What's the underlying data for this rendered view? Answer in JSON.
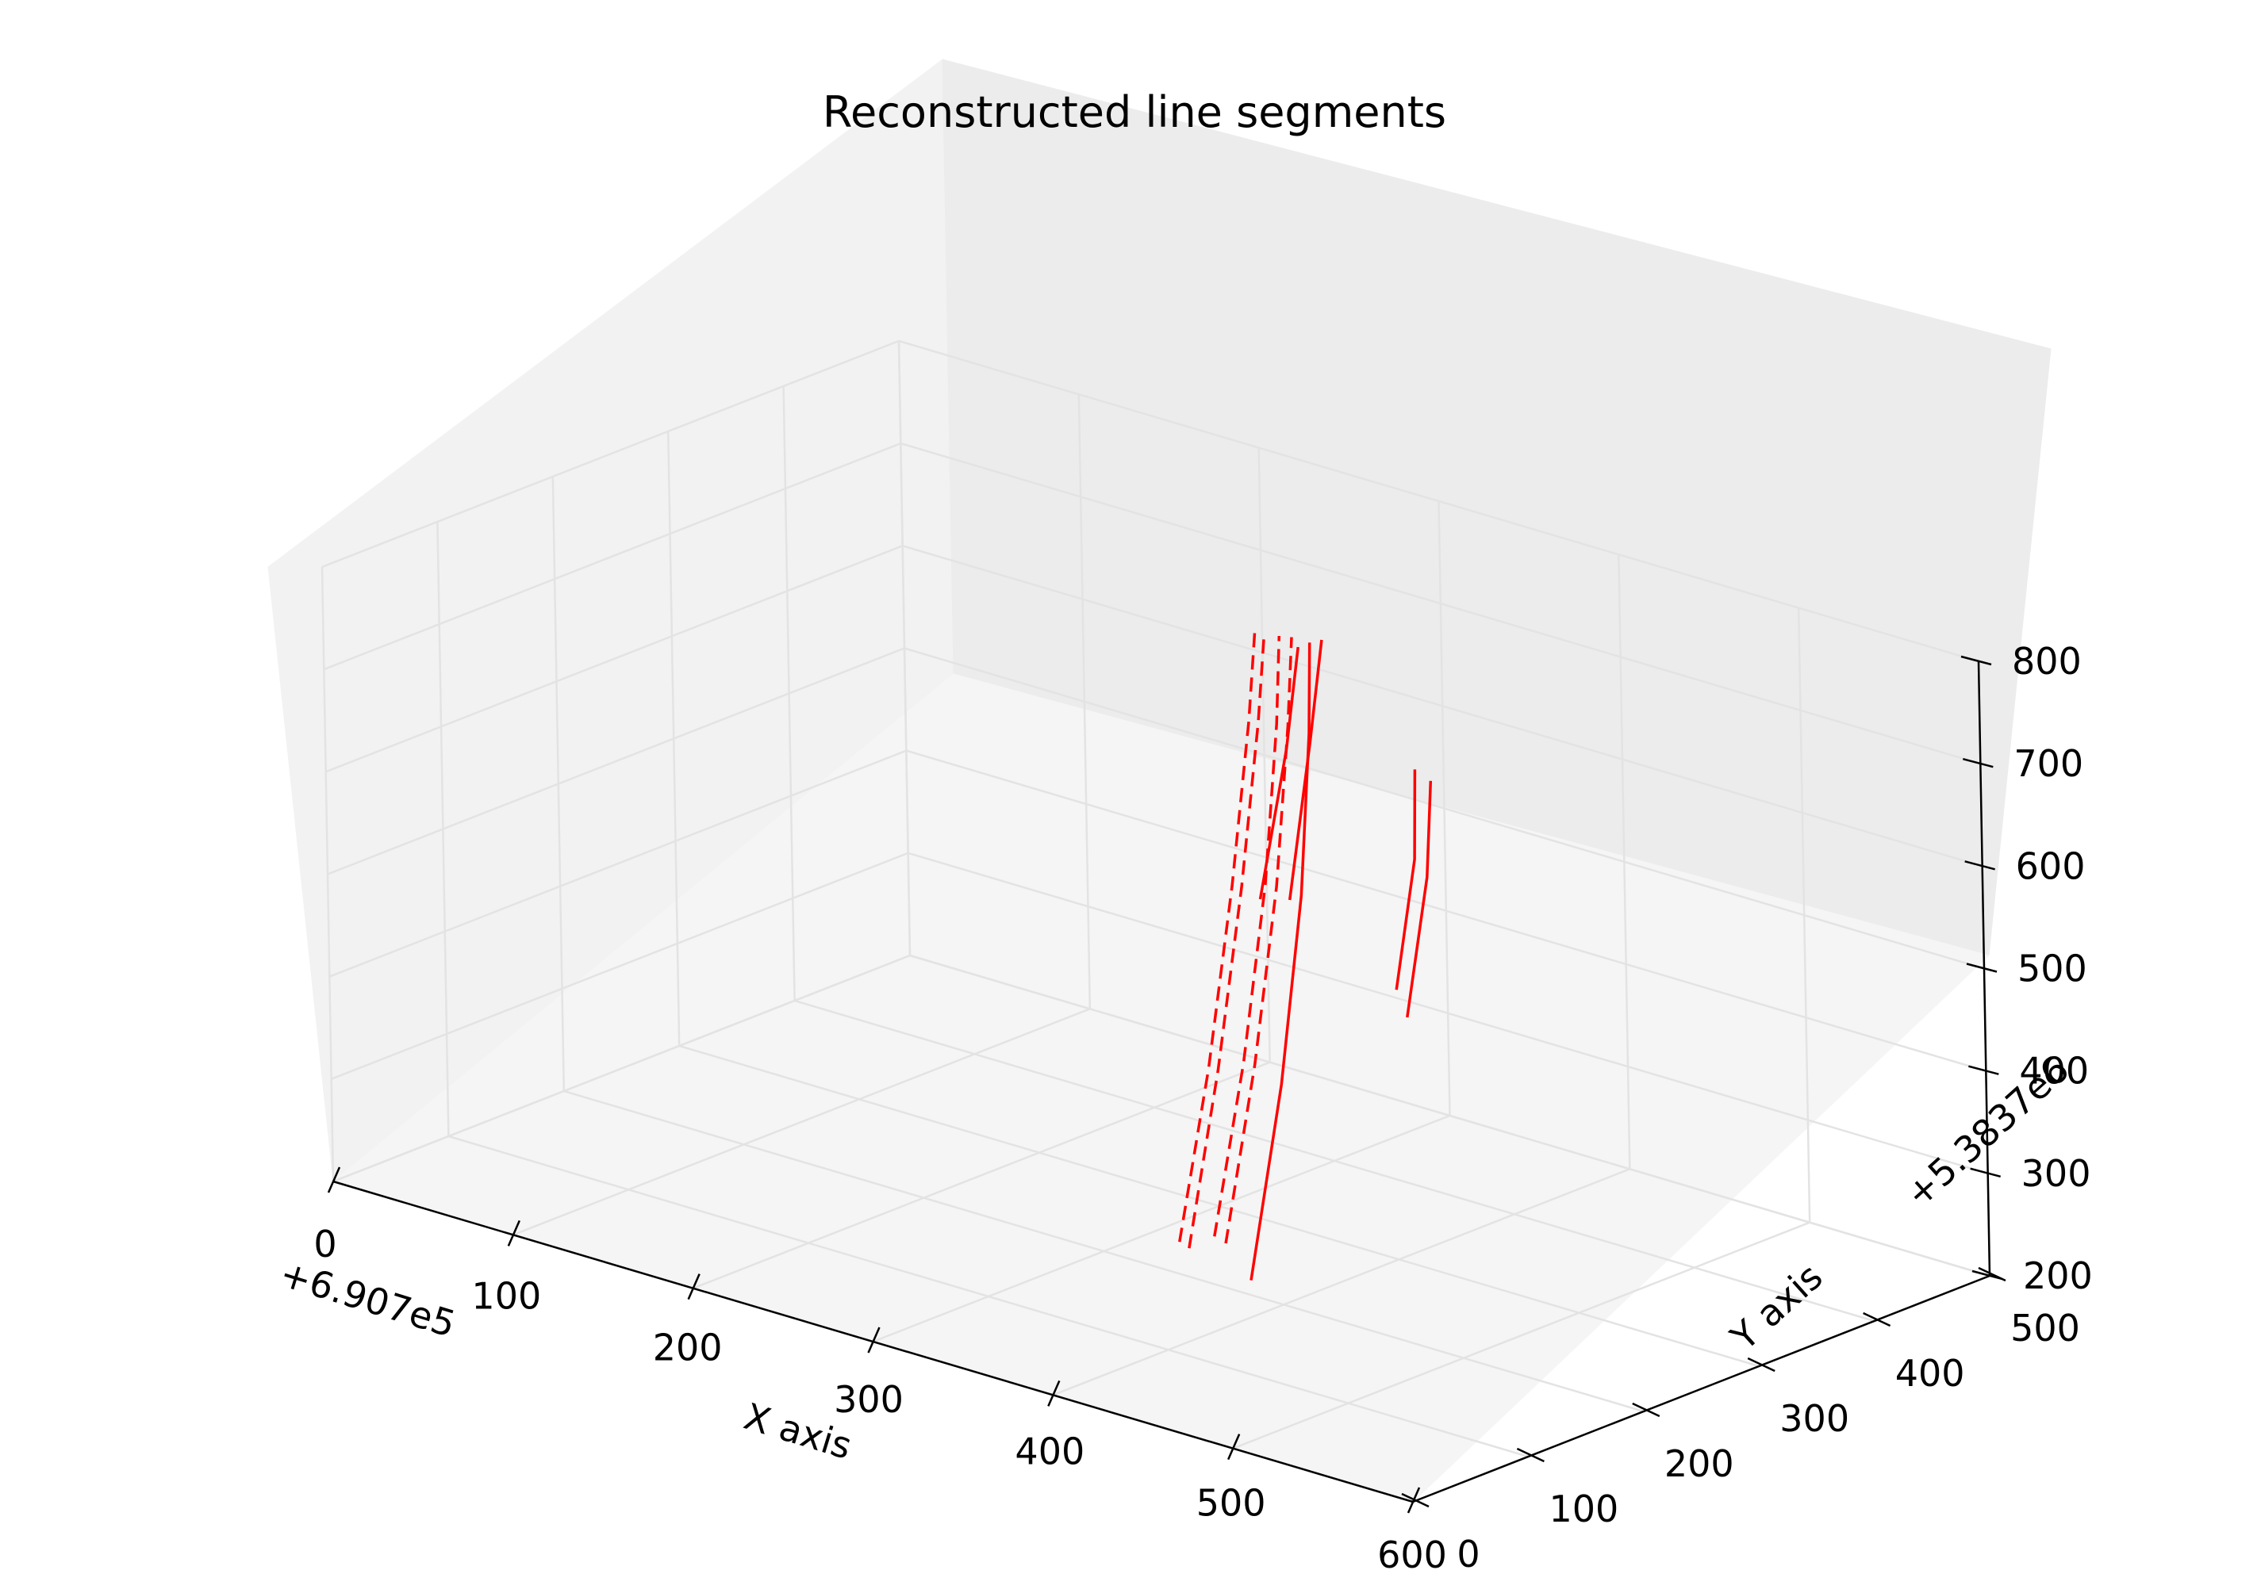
{
  "chart_data": {
    "type": "line3d",
    "title": "Reconstructed line segments",
    "xlabel": "X axis",
    "ylabel": "Y axis",
    "zlabel": "",
    "x_offset_text": "+6.907e5",
    "y_offset_text": "+5.3837e6",
    "xlim": [
      0,
      600
    ],
    "ylim": [
      0,
      500
    ],
    "zlim": [
      200,
      800
    ],
    "x_ticks": [
      "0",
      "100",
      "200",
      "300",
      "400",
      "500",
      "600"
    ],
    "y_ticks": [
      "0",
      "100",
      "200",
      "300",
      "400",
      "500"
    ],
    "z_ticks": [
      "200",
      "300",
      "400",
      "500",
      "600",
      "700",
      "800"
    ],
    "grid": true,
    "line_color": "#ff0000",
    "series": [
      {
        "style": "solid",
        "points": [
          [
            395,
            180,
            230
          ],
          [
            388,
            220,
            400
          ],
          [
            375,
            260,
            560
          ],
          [
            355,
            300,
            690
          ],
          [
            340,
            325,
            760
          ]
        ]
      },
      {
        "style": "dashed",
        "points": [
          [
            378,
            185,
            255
          ],
          [
            372,
            222,
            410
          ],
          [
            360,
            262,
            560
          ],
          [
            342,
            302,
            690
          ],
          [
            330,
            325,
            760
          ]
        ]
      },
      {
        "style": "dashed",
        "points": [
          [
            373,
            183,
            260
          ],
          [
            367,
            220,
            410
          ],
          [
            355,
            260,
            560
          ],
          [
            337,
            300,
            690
          ],
          [
            325,
            322,
            760
          ]
        ]
      },
      {
        "style": "dashed",
        "points": [
          [
            362,
            178,
            245
          ],
          [
            356,
            215,
            400
          ],
          [
            345,
            255,
            555
          ],
          [
            330,
            295,
            690
          ],
          [
            318,
            320,
            760
          ]
        ]
      },
      {
        "style": "dashed",
        "points": [
          [
            358,
            176,
            250
          ],
          [
            352,
            213,
            400
          ],
          [
            341,
            253,
            555
          ],
          [
            326,
            293,
            690
          ],
          [
            314,
            318,
            760
          ]
        ]
      },
      {
        "style": "solid",
        "points": [
          [
            407,
            300,
            440
          ],
          [
            400,
            330,
            560
          ],
          [
            390,
            350,
            640
          ]
        ]
      },
      {
        "style": "solid",
        "points": [
          [
            398,
            305,
            460
          ],
          [
            390,
            335,
            570
          ],
          [
            380,
            352,
            645
          ]
        ]
      },
      {
        "style": "solid",
        "points": [
          [
            365,
            240,
            560
          ],
          [
            352,
            285,
            680
          ],
          [
            340,
            315,
            760
          ]
        ]
      },
      {
        "style": "solid",
        "points": [
          [
            375,
            250,
            560
          ],
          [
            362,
            290,
            690
          ],
          [
            350,
            320,
            770
          ]
        ]
      }
    ]
  }
}
